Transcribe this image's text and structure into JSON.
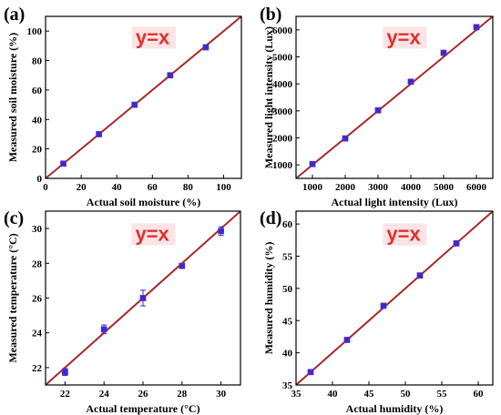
{
  "colors": {
    "fit_line": "#a52a2a",
    "marker": "#2f2fd8",
    "marker_edge": "#7a2aa0",
    "annotation": "#e0302c",
    "annotation_bg": "#fbe3e6"
  },
  "chart_data": [
    {
      "type": "scatter",
      "panel": "(a)",
      "xlabel": "Actual soil moisture (%)",
      "ylabel": "Measured soil moisture (%)",
      "xlim": [
        0,
        110
      ],
      "ylim": [
        0,
        110
      ],
      "xticks": [
        0,
        20,
        40,
        60,
        80,
        100
      ],
      "yticks": [
        0,
        20,
        40,
        60,
        80,
        100
      ],
      "xtick_labels": [
        "0",
        "20",
        "40",
        "60",
        "80",
        "100"
      ],
      "ytick_labels": [
        "0",
        "20",
        "40",
        "60",
        "80",
        "100"
      ],
      "annotation": "y=x",
      "line": [
        [
          0,
          0
        ],
        [
          110,
          110
        ]
      ],
      "points": [
        {
          "x": 10,
          "y": 10,
          "err": 0.5
        },
        {
          "x": 30,
          "y": 30,
          "err": 0.5
        },
        {
          "x": 50,
          "y": 50,
          "err": 0.5
        },
        {
          "x": 70,
          "y": 70,
          "err": 0.5
        },
        {
          "x": 90,
          "y": 89,
          "err": 0.5
        }
      ]
    },
    {
      "type": "scatter",
      "panel": "(b)",
      "xlabel": "Actual light intensity (Lux)",
      "ylabel": "Measured light intensity (Lux)",
      "xlim": [
        500,
        6500
      ],
      "ylim": [
        500,
        6500
      ],
      "xticks": [
        1000,
        2000,
        3000,
        4000,
        5000,
        6000
      ],
      "yticks": [
        1000,
        2000,
        3000,
        4000,
        5000,
        6000
      ],
      "xtick_labels": [
        "1000",
        "2000",
        "3000",
        "4000",
        "5000",
        "6000"
      ],
      "ytick_labels": [
        "1000",
        "2000",
        "3000",
        "4000",
        "5000",
        "6000"
      ],
      "annotation": "y=x",
      "line": [
        [
          500,
          500
        ],
        [
          6500,
          6500
        ]
      ],
      "points": [
        {
          "x": 1000,
          "y": 1030,
          "err": 40
        },
        {
          "x": 2000,
          "y": 1980,
          "err": 40
        },
        {
          "x": 3000,
          "y": 3020,
          "err": 40
        },
        {
          "x": 4000,
          "y": 4080,
          "err": 40
        },
        {
          "x": 5000,
          "y": 5150,
          "err": 40
        },
        {
          "x": 6000,
          "y": 6100,
          "err": 50
        }
      ]
    },
    {
      "type": "scatter",
      "panel": "(c)",
      "xlabel": "Actual temperature (°C)",
      "ylabel": "Measured temperature (°C)",
      "xlim": [
        21,
        31
      ],
      "ylim": [
        21,
        31
      ],
      "xticks": [
        22,
        24,
        26,
        28,
        30
      ],
      "yticks": [
        22,
        24,
        26,
        28,
        30
      ],
      "xtick_labels": [
        "22",
        "24",
        "26",
        "28",
        "30"
      ],
      "ytick_labels": [
        "22",
        "24",
        "26",
        "28",
        "30"
      ],
      "annotation": "y=x",
      "line": [
        [
          21,
          21
        ],
        [
          31,
          31
        ]
      ],
      "points": [
        {
          "x": 22,
          "y": 21.75,
          "err": 0.2
        },
        {
          "x": 24,
          "y": 24.2,
          "err": 0.25
        },
        {
          "x": 26,
          "y": 26.0,
          "err": 0.45
        },
        {
          "x": 28,
          "y": 27.85,
          "err": 0.1
        },
        {
          "x": 30,
          "y": 29.85,
          "err": 0.25
        }
      ]
    },
    {
      "type": "scatter",
      "panel": "(d)",
      "xlabel": "Actual humidity (%)",
      "ylabel": "Measured humidity  (%)",
      "xlim": [
        35,
        62
      ],
      "ylim": [
        35,
        62
      ],
      "xticks": [
        35,
        40,
        45,
        50,
        55,
        60
      ],
      "yticks": [
        35,
        40,
        45,
        50,
        55,
        60
      ],
      "xtick_labels": [
        "35",
        "40",
        "45",
        "50",
        "55",
        "60"
      ],
      "ytick_labels": [
        "35",
        "40",
        "45",
        "50",
        "55",
        "60"
      ],
      "annotation": "y=x",
      "line": [
        [
          35,
          35
        ],
        [
          62,
          62
        ]
      ],
      "points": [
        {
          "x": 37,
          "y": 37.0,
          "err": 0.3
        },
        {
          "x": 42,
          "y": 42.0,
          "err": 0.3
        },
        {
          "x": 47,
          "y": 47.3,
          "err": 0.3
        },
        {
          "x": 52,
          "y": 52.0,
          "err": 0.4
        },
        {
          "x": 57,
          "y": 57.0,
          "err": 0.4
        }
      ]
    }
  ]
}
